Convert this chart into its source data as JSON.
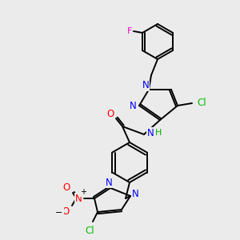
{
  "bg_color": "#ebebeb",
  "bond_color": "#000000",
  "atom_colors": {
    "N": "#0000ff",
    "O": "#ff0000",
    "F": "#ff00cc",
    "Cl": "#00bb00",
    "H": "#00aa00",
    "C": "#000000"
  },
  "figsize": [
    3.0,
    3.0
  ],
  "dpi": 100,
  "lw": 1.4
}
